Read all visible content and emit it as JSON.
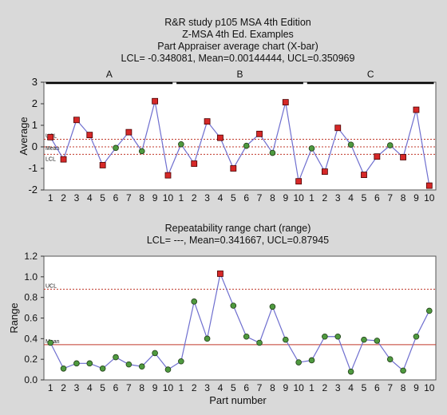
{
  "chart_data": [
    {
      "type": "line",
      "title": [
        "R&R study p105 MSA 4th Edition",
        "Z-MSA 4th Ed. Examples",
        "Part Appraiser average chart (X-bar)",
        "LCL= -0.348081, Mean=0.00144444, UCL=0.350969"
      ],
      "ylabel": "Average",
      "xlabel": "",
      "ylim": [
        -2,
        3
      ],
      "yticks": [
        -2,
        -1,
        0,
        1,
        2,
        3
      ],
      "x_tick_labels": [
        "1",
        "2",
        "3",
        "4",
        "5",
        "6",
        "7",
        "8",
        "9",
        "10"
      ],
      "groups": [
        "A",
        "B",
        "C"
      ],
      "control_lines": {
        "UCL": 0.350969,
        "Mean": 0.00144444,
        "LCL": -0.348081
      },
      "control_labels": {
        "UCL": "UCL",
        "Mean": "Mean",
        "LCL": "LCL"
      },
      "series": [
        {
          "values": [
            0.45,
            -0.58,
            1.25,
            0.55,
            -0.85,
            -0.05,
            0.68,
            -0.2,
            2.12,
            -1.32
          ]
        },
        {
          "values": [
            0.12,
            -0.78,
            1.18,
            0.42,
            -1.0,
            0.05,
            0.6,
            -0.28,
            2.07,
            -1.6
          ]
        },
        {
          "values": [
            -0.07,
            -1.15,
            0.88,
            0.1,
            -1.3,
            -0.45,
            0.07,
            -0.48,
            1.72,
            -1.8
          ]
        }
      ]
    },
    {
      "type": "line",
      "title": [
        "Repeatability range chart (range)",
        "LCL= ---, Mean=0.341667, UCL=0.87945"
      ],
      "ylabel": "Range",
      "xlabel": "Part number",
      "ylim": [
        0,
        1.2
      ],
      "yticks": [
        "0.0",
        "0.2",
        "0.4",
        "0.6",
        "0.8",
        "1.0",
        "1.2"
      ],
      "x_tick_labels": [
        "1",
        "2",
        "3",
        "4",
        "5",
        "6",
        "7",
        "8",
        "9",
        "10"
      ],
      "control_lines": {
        "UCL": 0.87945,
        "Mean": 0.341667
      },
      "control_labels": {
        "UCL": "UCL",
        "Mean": "Mean"
      },
      "series": [
        {
          "values": [
            0.36,
            0.11,
            0.16,
            0.16,
            0.11,
            0.22,
            0.15,
            0.13,
            0.26,
            0.1
          ]
        },
        {
          "values": [
            0.18,
            0.76,
            0.4,
            1.03,
            0.72,
            0.42,
            0.36,
            0.71,
            0.39,
            0.17
          ]
        },
        {
          "values": [
            0.19,
            0.42,
            0.42,
            0.08,
            0.39,
            0.38,
            0.2,
            0.09,
            0.42,
            0.67
          ]
        }
      ]
    }
  ],
  "colors": {
    "background": "#d9d9d9",
    "plot_background": "#ffffff",
    "line": "#6f6fcf",
    "out_of_control_marker": "#d62828",
    "in_control_marker": "#4f9a3f",
    "control_line": "#c0392b"
  }
}
